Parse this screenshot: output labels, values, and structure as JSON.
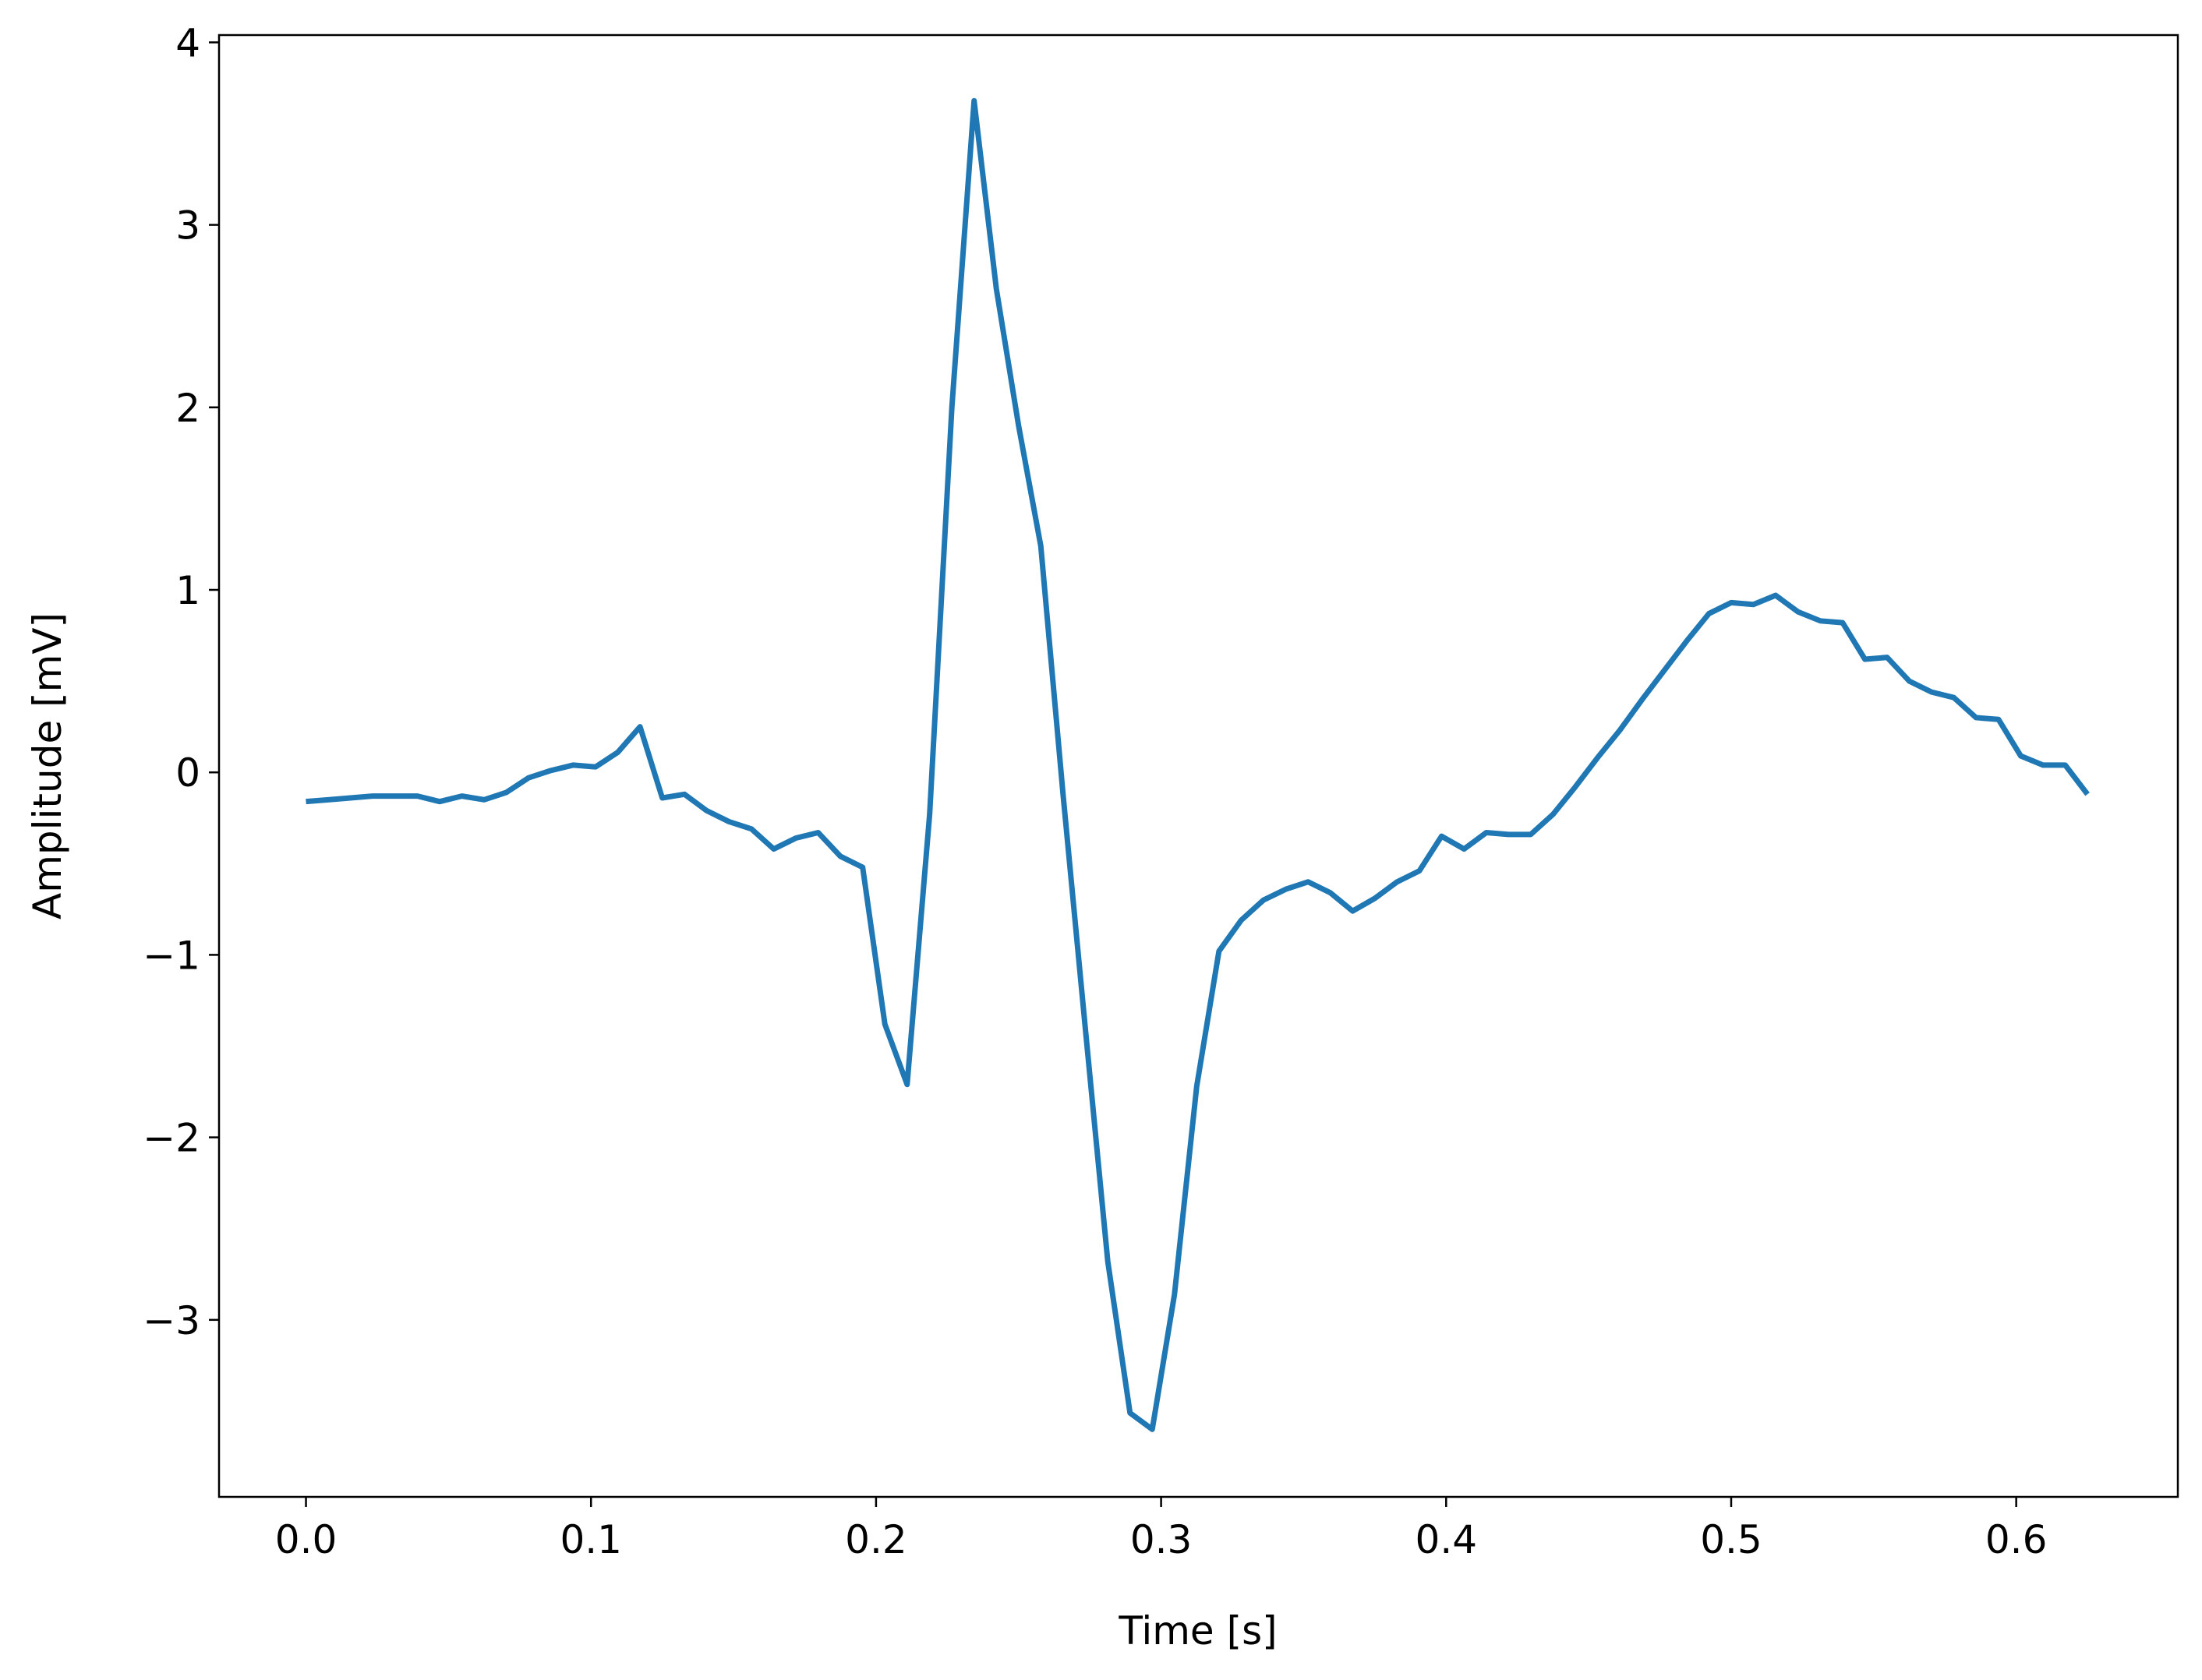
{
  "chart_data": {
    "type": "line",
    "x_label": "Time [s]",
    "y_label": "Amplitude [mV]",
    "x": [
      0,
      0.0078,
      0.0156,
      0.0234,
      0.0313,
      0.0391,
      0.0469,
      0.0547,
      0.0625,
      0.0703,
      0.0781,
      0.0859,
      0.0938,
      0.1016,
      0.1094,
      0.1172,
      0.125,
      0.1328,
      0.1406,
      0.1484,
      0.1563,
      0.1641,
      0.1719,
      0.1797,
      0.1875,
      0.1953,
      0.2031,
      0.2109,
      0.2188,
      0.2266,
      0.2344,
      0.2422,
      0.25,
      0.2578,
      0.2656,
      0.2734,
      0.2813,
      0.2891,
      0.2969,
      0.3047,
      0.3125,
      0.3203,
      0.3281,
      0.3359,
      0.3438,
      0.3516,
      0.3594,
      0.3672,
      0.375,
      0.3828,
      0.3906,
      0.3984,
      0.4063,
      0.4141,
      0.4219,
      0.4297,
      0.4375,
      0.4453,
      0.4531,
      0.4609,
      0.4688,
      0.4766,
      0.4844,
      0.4922,
      0.5,
      0.5078,
      0.5156,
      0.5234,
      0.5313,
      0.5391,
      0.5469,
      0.5547,
      0.5625,
      0.5703,
      0.5781,
      0.5859,
      0.5938,
      0.6016,
      0.6094,
      0.6172,
      0.625
    ],
    "values": [
      -0.16,
      -0.15,
      -0.14,
      -0.13,
      -0.13,
      -0.13,
      -0.16,
      -0.13,
      -0.15,
      -0.11,
      -0.03,
      0.01,
      0.04,
      0.03,
      0.11,
      0.25,
      -0.14,
      -0.12,
      -0.21,
      -0.27,
      -0.31,
      -0.42,
      -0.36,
      -0.33,
      -0.46,
      -0.52,
      -1.38,
      -1.71,
      -0.23,
      2.0,
      3.68,
      2.65,
      1.9,
      1.24,
      -0.12,
      -1.4,
      -2.68,
      -3.51,
      -3.6,
      -2.86,
      -1.72,
      -0.98,
      -0.81,
      -0.7,
      -0.64,
      -0.6,
      -0.66,
      -0.76,
      -0.69,
      -0.6,
      -0.54,
      -0.35,
      -0.42,
      -0.33,
      -0.34,
      -0.34,
      -0.23,
      -0.08,
      0.08,
      0.23,
      0.4,
      0.56,
      0.72,
      0.87,
      0.93,
      0.92,
      0.97,
      0.88,
      0.83,
      0.82,
      0.62,
      0.63,
      0.5,
      0.44,
      0.41,
      0.3,
      0.29,
      0.09,
      0.04,
      0.04,
      -0.12
    ],
    "color": "#1f77b4",
    "xlim": [
      -0.0305,
      0.6567
    ],
    "ylim": [
      -3.97,
      4.04
    ],
    "xticks": [
      {
        "value": 0,
        "label": "0.0"
      },
      0.1,
      0.2,
      0.3,
      0.4,
      0.5,
      0.6
    ],
    "yticks": [
      {
        "value": -3,
        "label": "−3"
      },
      {
        "value": -2,
        "label": "−2"
      },
      {
        "value": -1,
        "label": "−1"
      },
      0,
      1,
      2,
      3,
      4
    ],
    "grid": false
  }
}
